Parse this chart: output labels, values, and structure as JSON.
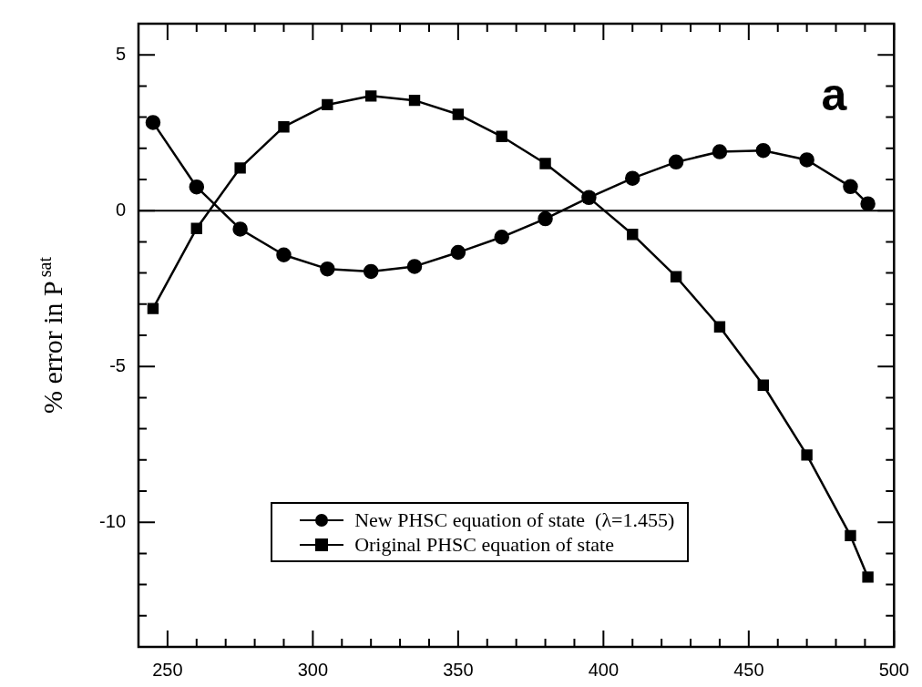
{
  "chart_data": {
    "type": "line",
    "ylabel": "% error in P$^{sat}$",
    "annotations": [
      "a"
    ],
    "x": [
      245,
      260,
      275,
      290,
      305,
      320,
      335,
      350,
      365,
      380,
      395,
      410,
      425,
      440,
      455,
      470,
      485,
      491
    ],
    "series": [
      {
        "name": "New PHSC equation of state  (λ=1.455)",
        "color": "#000000",
        "marker": "circle",
        "values": [
          2.83,
          0.76,
          -0.59,
          -1.42,
          -1.87,
          -1.95,
          -1.79,
          -1.34,
          -0.85,
          -0.26,
          0.42,
          1.04,
          1.56,
          1.89,
          1.93,
          1.63,
          0.77,
          0.22
        ]
      },
      {
        "name": "Original PHSC equation of state",
        "color": "#000000",
        "marker": "square",
        "values": [
          -3.14,
          -0.57,
          1.37,
          2.69,
          3.4,
          3.68,
          3.54,
          3.09,
          2.38,
          1.51,
          0.42,
          -0.76,
          -2.12,
          -3.73,
          -5.6,
          -7.84,
          -10.43,
          -11.76
        ]
      }
    ],
    "xlim": [
      240,
      500
    ],
    "xticks": [
      250,
      {
        "value": 260,
        "label": null
      },
      {
        "value": 270,
        "label": null
      },
      {
        "value": 280,
        "label": null
      },
      {
        "value": 290,
        "label": null
      },
      300,
      {
        "value": 310,
        "label": null
      },
      {
        "value": 320,
        "label": null
      },
      {
        "value": 330,
        "label": null
      },
      {
        "value": 340,
        "label": null
      },
      350,
      {
        "value": 360,
        "label": null
      },
      {
        "value": 370,
        "label": null
      },
      {
        "value": 380,
        "label": null
      },
      {
        "value": 390,
        "label": null
      },
      400,
      {
        "value": 410,
        "label": null
      },
      {
        "value": 420,
        "label": null
      },
      {
        "value": 430,
        "label": null
      },
      {
        "value": 440,
        "label": null
      },
      450,
      {
        "value": 460,
        "label": null
      },
      {
        "value": 470,
        "label": null
      },
      {
        "value": 480,
        "label": null
      },
      {
        "value": 490,
        "label": null
      },
      500
    ],
    "ylim": [
      -14,
      6
    ],
    "yticks": [
      {
        "value": -13,
        "label": null
      },
      {
        "value": -12,
        "label": null
      },
      {
        "value": -11,
        "label": null
      },
      -10,
      {
        "value": -9,
        "label": null
      },
      {
        "value": -8,
        "label": null
      },
      {
        "value": -7,
        "label": null
      },
      {
        "value": -6,
        "label": null
      },
      -5,
      {
        "value": -4,
        "label": null
      },
      {
        "value": -3,
        "label": null
      },
      {
        "value": -2,
        "label": null
      },
      {
        "value": -1,
        "label": null
      },
      0,
      {
        "value": 1,
        "label": null
      },
      {
        "value": 2,
        "label": null
      },
      {
        "value": 3,
        "label": null
      },
      {
        "value": 4,
        "label": null
      },
      5
    ],
    "ref_lines": [
      {
        "axis": "y",
        "value": 0,
        "color": "#000000"
      }
    ],
    "legend": "bottom",
    "grid": false,
    "line_style": "solid"
  }
}
